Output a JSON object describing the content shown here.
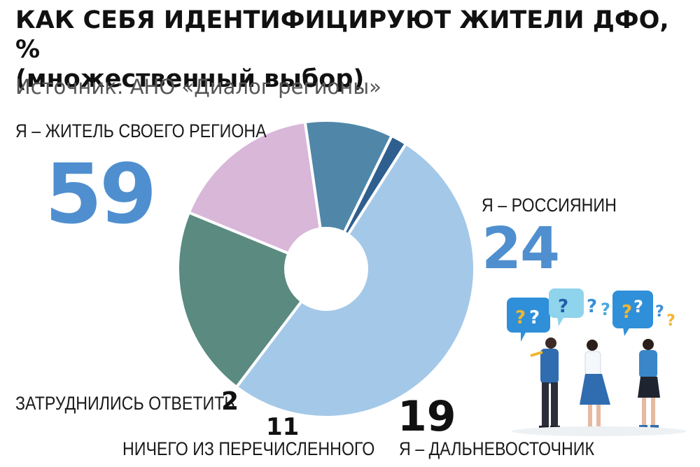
{
  "header": {
    "title": "КАК СЕБЯ ИДЕНТИФИЦИРУЮТ ЖИТЕЛИ ДФО, %",
    "subtitle": "(множественный выбор)",
    "source": "Источник: АНО «Диалог регионы»"
  },
  "chart_data": {
    "type": "pie",
    "title": "КАК СЕБЯ ИДЕНТИФИЦИРУЮТ ЖИТЕЛИ ДФО, %",
    "subtitle": "(множественный выбор)",
    "unit": "%",
    "slices": [
      {
        "label": "Я – ЖИТЕЛЬ СВОЕГО РЕГИОНА",
        "value": 59,
        "color": "#a4c8e8"
      },
      {
        "label": "Я – РОССИЯНИН",
        "value": 24,
        "color": "#5a8a80"
      },
      {
        "label": "Я – ДАЛЬНЕВОСТОЧНИК",
        "value": 19,
        "color": "#d9b7d9"
      },
      {
        "label": "НИЧЕГО ИЗ ПЕРЕЧИСЛЕННОГО",
        "value": 11,
        "color": "#5087a8"
      },
      {
        "label": "ЗАТРУДНИЛИСЬ ОТВЕТИТЬ",
        "value": 2,
        "color": "#2e5f8f"
      }
    ]
  },
  "accent_colors": {
    "value_blue": "#4f8fcf",
    "value_dark": "#111111"
  },
  "illustration": {
    "icon": "people-with-question-marks-icon",
    "question_mark": "?"
  }
}
